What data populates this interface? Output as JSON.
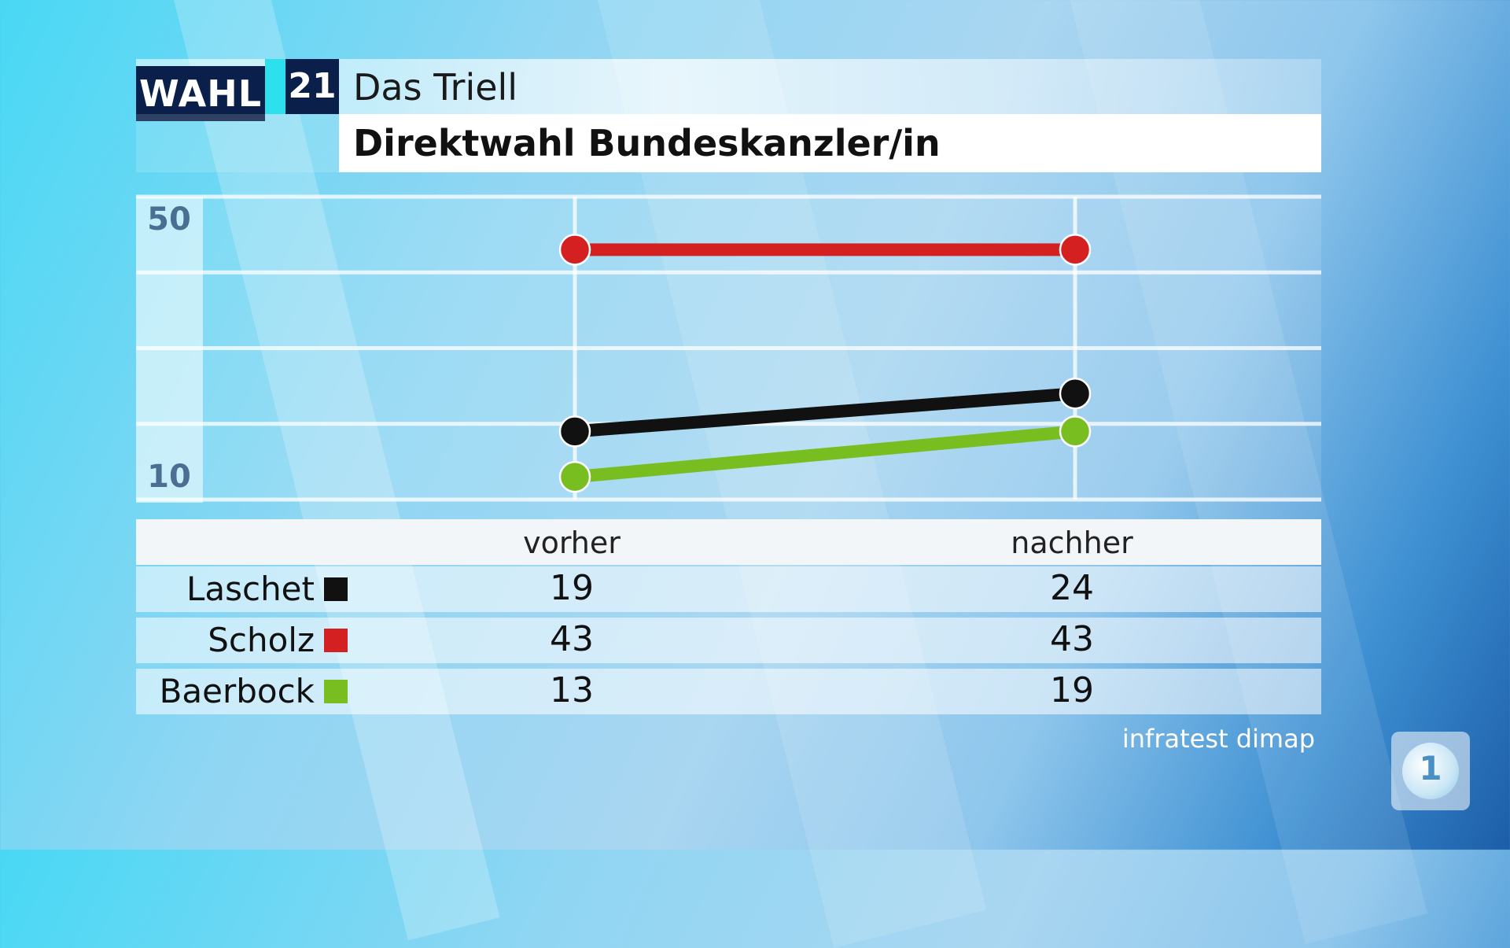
{
  "header": {
    "logo_word": "WAHL",
    "logo_number": "21",
    "title": "Das Triell",
    "subtitle": "Direktwahl Bundeskanzler/in"
  },
  "chart_data": {
    "type": "line",
    "title": "Direktwahl Bundeskanzler/in",
    "categories": [
      "vorher",
      "nachher"
    ],
    "y_tick_labels": [
      "50",
      "10"
    ],
    "y_ticks": [
      10,
      20,
      30,
      40,
      50
    ],
    "ylim": [
      10,
      50
    ],
    "grid": true,
    "series": [
      {
        "name": "Laschet",
        "color": "#111111",
        "values": [
          19,
          24
        ]
      },
      {
        "name": "Scholz",
        "color": "#d42020",
        "values": [
          43,
          43
        ]
      },
      {
        "name": "Baerbock",
        "color": "#78be20",
        "values": [
          13,
          19
        ]
      }
    ]
  },
  "table": {
    "columns": [
      "vorher",
      "nachher"
    ],
    "rows": [
      {
        "name": "Laschet",
        "color": "#111111",
        "values": [
          "19",
          "24"
        ]
      },
      {
        "name": "Scholz",
        "color": "#d42020",
        "values": [
          "43",
          "43"
        ]
      },
      {
        "name": "Baerbock",
        "color": "#78be20",
        "values": [
          "13",
          "19"
        ]
      }
    ]
  },
  "source": "infratest dimap",
  "broadcaster_logo": "1"
}
